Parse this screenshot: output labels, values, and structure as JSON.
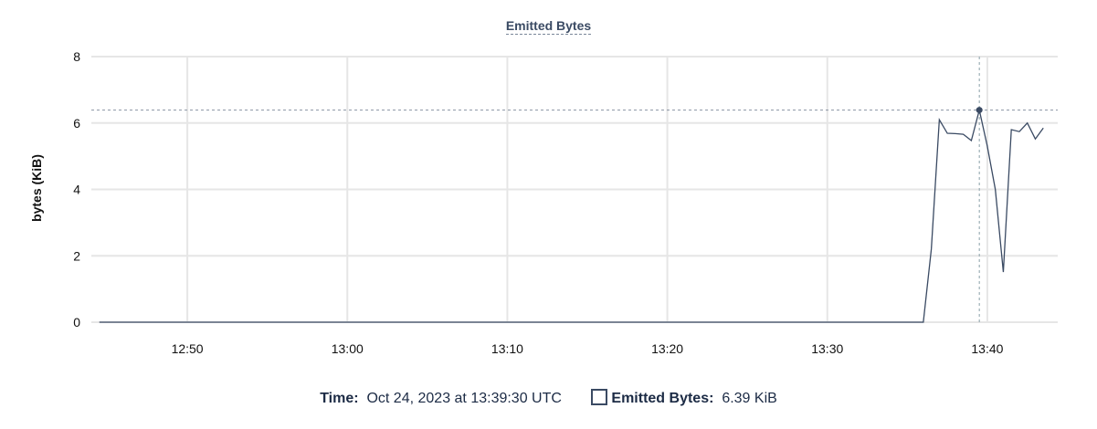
{
  "chart_data": {
    "type": "line",
    "title": "Emitted Bytes",
    "xlabel": "",
    "ylabel": "bytes (KiB)",
    "xlim": [
      "12:44:00",
      "13:44:24"
    ],
    "ylim": [
      0,
      8
    ],
    "x_ticks": [
      "12:50",
      "13:00",
      "13:10",
      "13:20",
      "13:30",
      "13:40"
    ],
    "y_ticks": [
      0,
      2,
      4,
      6,
      8
    ],
    "grid": true,
    "series": [
      {
        "name": "Emitted Bytes",
        "color": "#3a4a63",
        "x": [
          "12:44:30",
          "13:36:00",
          "13:36:30",
          "13:37:00",
          "13:37:30",
          "13:38:00",
          "13:38:30",
          "13:39:00",
          "13:39:30",
          "13:40:00",
          "13:40:30",
          "13:41:00",
          "13:41:30",
          "13:42:00",
          "13:42:30",
          "13:43:00",
          "13:43:30"
        ],
        "values": [
          0,
          0,
          2.2,
          6.1,
          5.69,
          5.68,
          5.66,
          5.47,
          6.39,
          5.3,
          4.0,
          1.51,
          5.8,
          5.74,
          6.0,
          5.52,
          5.85
        ]
      }
    ],
    "hover": {
      "x": "13:39:30",
      "value": 6.39
    }
  },
  "tooltip": {
    "time_label": "Time:",
    "time_value": "Oct 24, 2023 at 13:39:30 UTC",
    "series_label": "Emitted Bytes:",
    "series_value": "6.39 KiB"
  }
}
